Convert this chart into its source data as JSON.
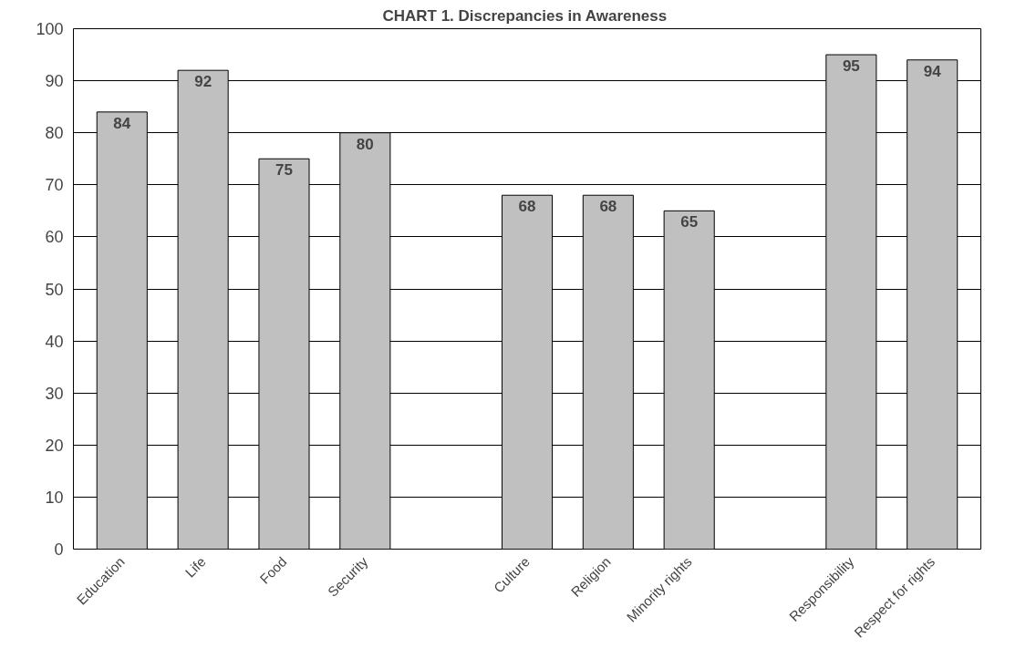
{
  "chart_data": {
    "type": "bar",
    "title": "CHART 1.  Discrepancies in Awareness",
    "categories": [
      "Education",
      "Life",
      "Food",
      "Security",
      null,
      "Culture",
      "Religion",
      "Minority rights",
      null,
      "Responsibility",
      "Respect for rights"
    ],
    "values": [
      84,
      92,
      75,
      80,
      null,
      68,
      68,
      65,
      null,
      95,
      94
    ],
    "color": "#c0c0c0",
    "ylim": [
      0,
      100
    ],
    "yticks": [
      0,
      10,
      20,
      30,
      40,
      50,
      60,
      70,
      80,
      90,
      100
    ],
    "grid": "y",
    "data_labels": true
  }
}
